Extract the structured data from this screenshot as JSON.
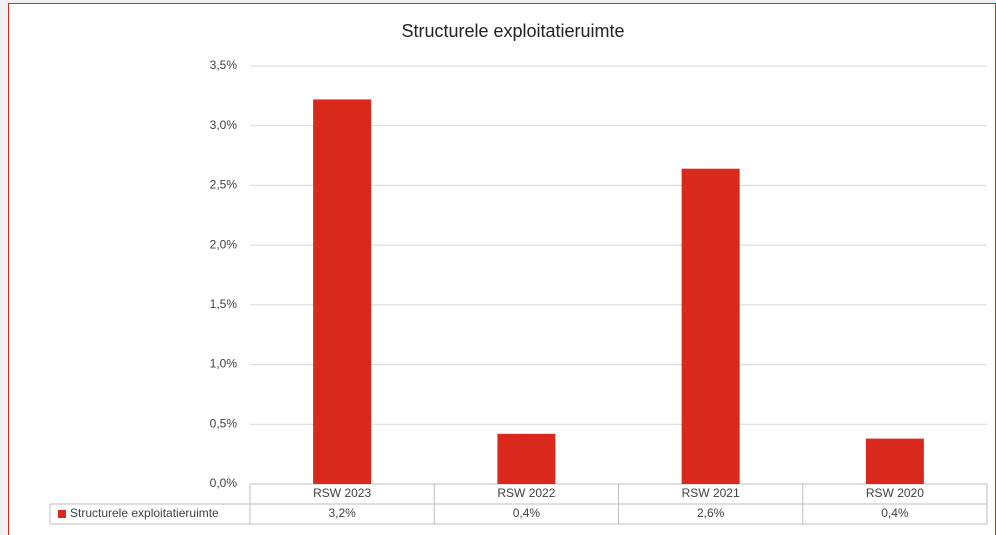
{
  "chart_data": {
    "type": "bar",
    "title": "Structurele exploitatieruimte",
    "categories": [
      "RSW 2023",
      "RSW 2022",
      "RSW 2021",
      "RSW 2020"
    ],
    "series": [
      {
        "name": "Structurele exploitatieruimte",
        "color": "#d9291c",
        "values": [
          3.22,
          0.42,
          2.64,
          0.38
        ],
        "value_labels": [
          "3,2%",
          "0,4%",
          "2,6%",
          "0,4%"
        ]
      }
    ],
    "ylim": [
      0,
      3.5
    ],
    "yticks": [
      {
        "value": 0,
        "label": "0,0%"
      },
      {
        "value": 0.5,
        "label": "0,5%"
      },
      {
        "value": 1,
        "label": "1,0%"
      },
      {
        "value": 1.5,
        "label": "1,5%"
      },
      {
        "value": 2,
        "label": "2,0%"
      },
      {
        "value": 2.5,
        "label": "2,5%"
      },
      {
        "value": 3,
        "label": "3,0%"
      },
      {
        "value": 3.5,
        "label": "3,5%"
      }
    ],
    "grid": true
  }
}
